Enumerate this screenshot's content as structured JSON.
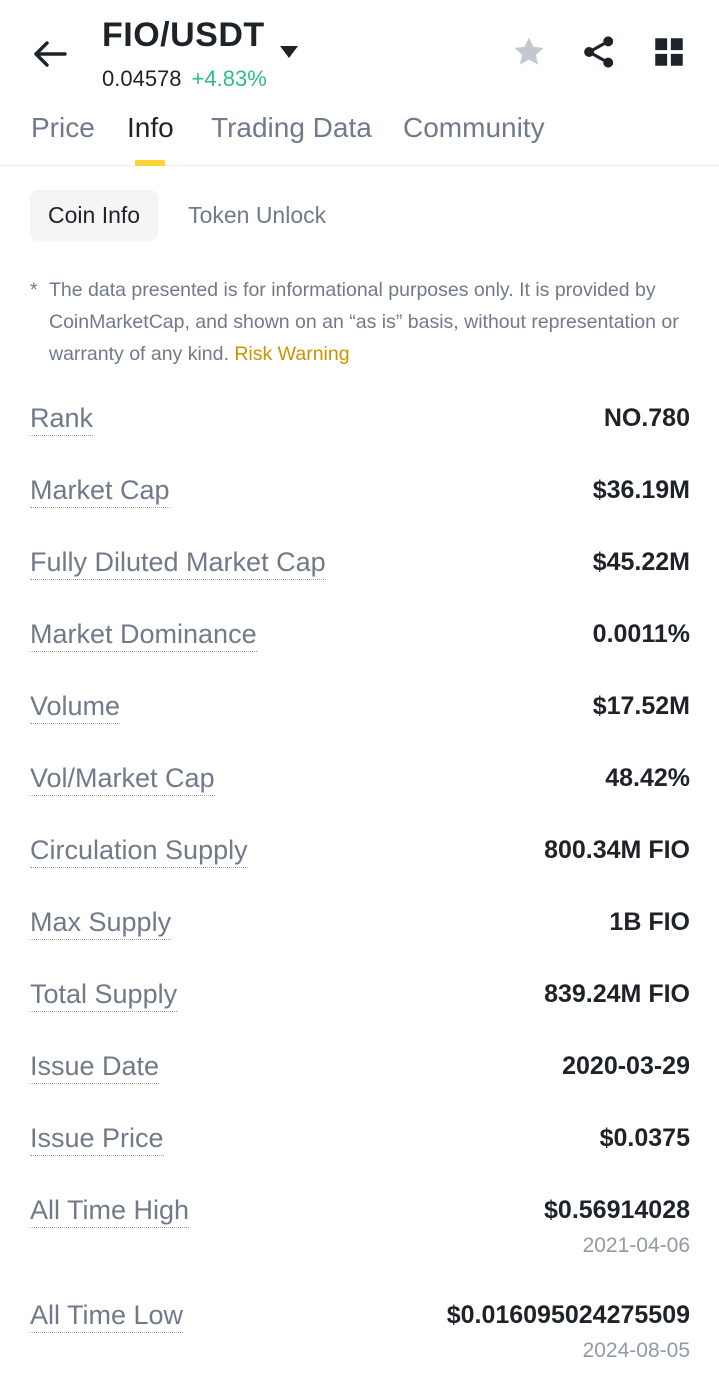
{
  "header": {
    "pair": "FIO/USDT",
    "last_price": "0.04578",
    "change": "+4.83%"
  },
  "tabs": [
    {
      "label": "Price"
    },
    {
      "label": "Info"
    },
    {
      "label": "Trading Data"
    },
    {
      "label": "Community"
    }
  ],
  "subtabs": [
    {
      "label": "Coin Info"
    },
    {
      "label": "Token Unlock"
    }
  ],
  "disclaimer": {
    "star": "*",
    "text": "The data presented is for informational purposes only. It is provided by CoinMarketCap, and shown on an “as is” basis, without representation or warranty of any kind. ",
    "link": "Risk Warning"
  },
  "rows": [
    {
      "label": "Rank",
      "value": "NO.780"
    },
    {
      "label": "Market Cap",
      "value": "$36.19M"
    },
    {
      "label": "Fully Diluted Market Cap",
      "value": "$45.22M"
    },
    {
      "label": "Market Dominance",
      "value": "0.0011%"
    },
    {
      "label": "Volume",
      "value": "$17.52M"
    },
    {
      "label": "Vol/Market Cap",
      "value": "48.42%"
    },
    {
      "label": "Circulation Supply",
      "value": "800.34M FIO"
    },
    {
      "label": "Max Supply",
      "value": "1B FIO"
    },
    {
      "label": "Total Supply",
      "value": "839.24M FIO"
    },
    {
      "label": "Issue Date",
      "value": "2020-03-29"
    },
    {
      "label": "Issue Price",
      "value": "$0.0375"
    },
    {
      "label": "All Time High",
      "value": "$0.56914028",
      "date": "2021-04-06"
    },
    {
      "label": "All Time Low",
      "value": "$0.016095024275509",
      "date": "2024-08-05"
    }
  ],
  "colors": {
    "accent": "#fcd535",
    "positive": "#2ebd85",
    "warning": "#c99400"
  },
  "icons": {
    "back": "arrow-left-icon",
    "dropdown": "caret-down-icon",
    "favorite": "star-icon",
    "share": "share-icon",
    "more": "grid-icon"
  }
}
